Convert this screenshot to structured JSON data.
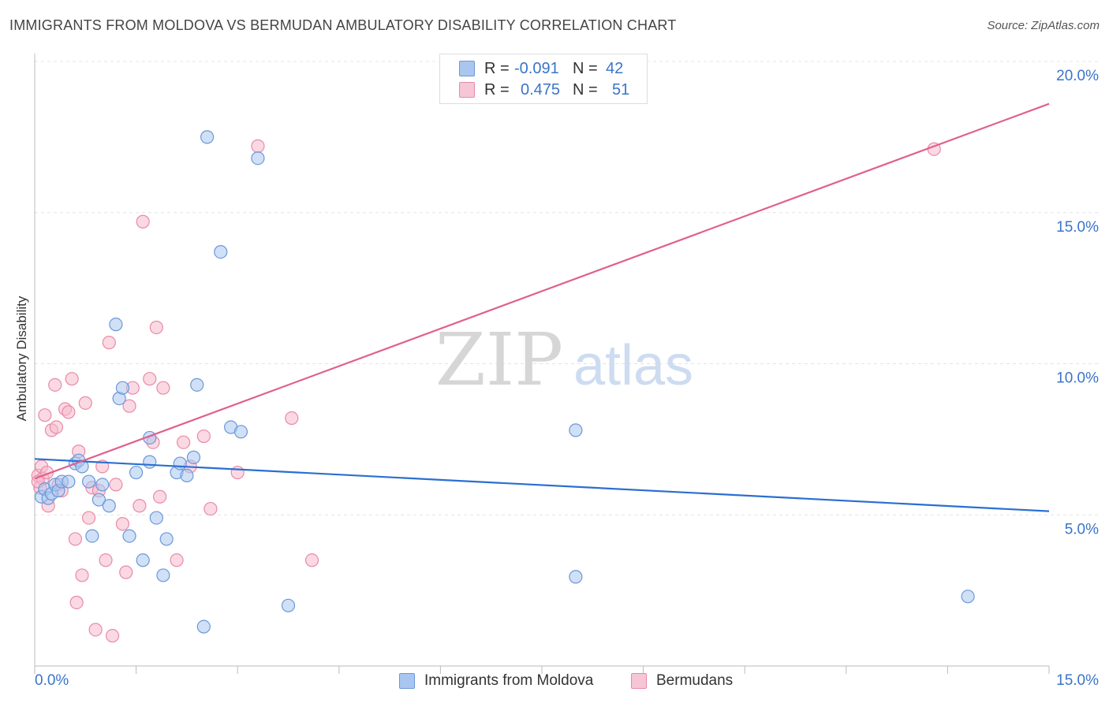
{
  "header": {
    "title": "IMMIGRANTS FROM MOLDOVA VS BERMUDAN AMBULATORY DISABILITY CORRELATION CHART",
    "source": "Source: ZipAtlas.com"
  },
  "legend": {
    "moldova": {
      "r_label": "R =",
      "r_value": "-0.091",
      "n_label": "N =",
      "n_value": "42"
    },
    "bermudan": {
      "r_label": "R =",
      "r_value": "0.475",
      "n_label": "N =",
      "n_value": "51"
    }
  },
  "bottom_legend": {
    "moldova": "Immigrants from Moldova",
    "bermudan": "Bermudans"
  },
  "watermark": {
    "zip": "ZIP",
    "atlas": "atlas"
  },
  "colors": {
    "blue_fill": "#a9c6f0",
    "blue_stroke": "#6a98d8",
    "blue_line": "#2a6fd1",
    "pink_fill": "#f6b9cc",
    "pink_stroke": "#e98aa8",
    "pink_line": "#e0608e",
    "tick_color": "#3a74c9",
    "grid": "#e3e3e3"
  },
  "chart_data": {
    "type": "scatter",
    "title": "IMMIGRANTS FROM MOLDOVA VS BERMUDAN AMBULATORY DISABILITY CORRELATION CHART",
    "xlabel": "",
    "ylabel": "Ambulatory Disability",
    "xlim": [
      0,
      15
    ],
    "ylim": [
      0,
      20
    ],
    "x_tick_labels": [
      "0.0%",
      "15.0%"
    ],
    "y_ticks": [
      5,
      10,
      15,
      20
    ],
    "y_tick_labels": [
      "5.0%",
      "10.0%",
      "15.0%",
      "20.0%"
    ],
    "series": [
      {
        "name": "Immigrants from Moldova",
        "color": "blue",
        "trend": {
          "x": [
            0,
            15
          ],
          "y": [
            6.85,
            5.12
          ]
        },
        "points": [
          [
            0.1,
            5.6
          ],
          [
            0.15,
            5.85
          ],
          [
            0.2,
            5.55
          ],
          [
            0.25,
            5.7
          ],
          [
            0.3,
            6.0
          ],
          [
            0.35,
            5.8
          ],
          [
            0.4,
            6.1
          ],
          [
            0.5,
            6.1
          ],
          [
            0.6,
            6.7
          ],
          [
            0.65,
            6.8
          ],
          [
            0.7,
            6.6
          ],
          [
            0.8,
            6.1
          ],
          [
            0.85,
            4.3
          ],
          [
            0.95,
            5.5
          ],
          [
            1.0,
            6.0
          ],
          [
            1.1,
            5.3
          ],
          [
            1.2,
            11.3
          ],
          [
            1.25,
            8.85
          ],
          [
            1.3,
            9.2
          ],
          [
            1.4,
            4.3
          ],
          [
            1.5,
            6.4
          ],
          [
            1.6,
            3.5
          ],
          [
            1.7,
            7.55
          ],
          [
            1.7,
            6.75
          ],
          [
            1.8,
            4.9
          ],
          [
            1.9,
            3.0
          ],
          [
            1.95,
            4.2
          ],
          [
            2.1,
            6.4
          ],
          [
            2.15,
            6.7
          ],
          [
            2.25,
            6.3
          ],
          [
            2.35,
            6.9
          ],
          [
            2.4,
            9.3
          ],
          [
            2.5,
            1.3
          ],
          [
            2.55,
            17.5
          ],
          [
            2.75,
            13.7
          ],
          [
            2.9,
            7.9
          ],
          [
            3.05,
            7.75
          ],
          [
            3.3,
            16.8
          ],
          [
            3.75,
            2.0
          ],
          [
            8.0,
            7.8
          ],
          [
            8.0,
            2.95
          ],
          [
            13.8,
            2.3
          ]
        ]
      },
      {
        "name": "Bermudans",
        "color": "pink",
        "trend": {
          "x": [
            0,
            15
          ],
          "y": [
            6.2,
            18.6
          ]
        },
        "points": [
          [
            0.05,
            6.3
          ],
          [
            0.08,
            5.9
          ],
          [
            0.1,
            6.6
          ],
          [
            0.12,
            6.2
          ],
          [
            0.15,
            8.3
          ],
          [
            0.2,
            5.3
          ],
          [
            0.25,
            7.8
          ],
          [
            0.3,
            9.3
          ],
          [
            0.32,
            7.9
          ],
          [
            0.35,
            6.0
          ],
          [
            0.4,
            5.8
          ],
          [
            0.45,
            8.5
          ],
          [
            0.5,
            8.4
          ],
          [
            0.55,
            9.5
          ],
          [
            0.6,
            4.2
          ],
          [
            0.62,
            2.1
          ],
          [
            0.65,
            7.1
          ],
          [
            0.7,
            3.0
          ],
          [
            0.75,
            8.7
          ],
          [
            0.8,
            4.9
          ],
          [
            0.85,
            5.9
          ],
          [
            0.9,
            1.2
          ],
          [
            0.95,
            5.8
          ],
          [
            1.0,
            6.6
          ],
          [
            1.05,
            3.5
          ],
          [
            1.1,
            10.7
          ],
          [
            1.15,
            1.0
          ],
          [
            1.2,
            6.0
          ],
          [
            1.3,
            4.7
          ],
          [
            1.35,
            3.1
          ],
          [
            1.4,
            8.6
          ],
          [
            1.45,
            9.2
          ],
          [
            1.55,
            5.3
          ],
          [
            1.6,
            14.7
          ],
          [
            1.7,
            9.5
          ],
          [
            1.75,
            7.4
          ],
          [
            1.8,
            11.2
          ],
          [
            1.85,
            5.6
          ],
          [
            1.9,
            9.2
          ],
          [
            2.1,
            3.5
          ],
          [
            2.2,
            7.4
          ],
          [
            2.3,
            6.6
          ],
          [
            2.5,
            7.6
          ],
          [
            2.6,
            5.2
          ],
          [
            3.0,
            6.4
          ],
          [
            3.3,
            17.2
          ],
          [
            3.8,
            8.2
          ],
          [
            4.1,
            3.5
          ],
          [
            0.05,
            6.1
          ],
          [
            0.18,
            6.4
          ],
          [
            13.3,
            17.1
          ]
        ]
      }
    ]
  }
}
